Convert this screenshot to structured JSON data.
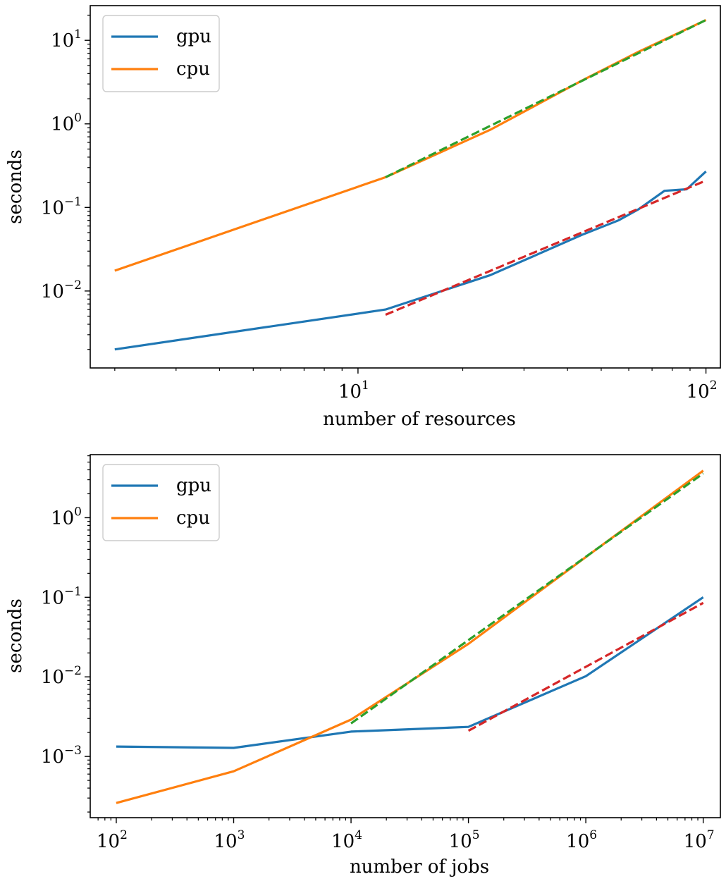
{
  "chart_data": [
    {
      "type": "line",
      "xscale": "log",
      "yscale": "log",
      "xlabel": "number of resources",
      "ylabel": "seconds",
      "xlim": [
        1.7,
        110
      ],
      "ylim": [
        0.0012,
        26
      ],
      "xticks": [
        {
          "value": 10,
          "base": "10",
          "exp": "1"
        },
        {
          "value": 100,
          "base": "10",
          "exp": "2"
        }
      ],
      "yticks": [
        {
          "value": 0.01,
          "base": "10",
          "exp": "−2"
        },
        {
          "value": 0.1,
          "base": "10",
          "exp": "−1"
        },
        {
          "value": 1,
          "base": "10",
          "exp": "0"
        },
        {
          "value": 10,
          "base": "10",
          "exp": "1"
        }
      ],
      "legend": {
        "location": "upper-left",
        "entries": [
          "gpu",
          "cpu"
        ]
      },
      "series": [
        {
          "name": "gpu",
          "color": "#1f77b4",
          "style": "solid",
          "x": [
            2,
            12,
            24,
            44,
            56,
            64,
            76,
            88,
            100
          ],
          "y": [
            0.002,
            0.006,
            0.0155,
            0.047,
            0.07,
            0.095,
            0.158,
            0.165,
            0.27
          ]
        },
        {
          "name": "cpu",
          "color": "#ff7f0e",
          "style": "solid",
          "x": [
            2,
            12,
            24,
            44,
            64,
            100
          ],
          "y": [
            0.0175,
            0.23,
            0.85,
            3.3,
            7.3,
            17.5
          ]
        },
        {
          "color": "#2ca02c",
          "style": "dashed",
          "x": [
            12,
            100
          ],
          "y": [
            0.23,
            17.5
          ]
        },
        {
          "color": "#d62728",
          "style": "dashed",
          "x": [
            12,
            100
          ],
          "y": [
            0.0052,
            0.21
          ]
        }
      ]
    },
    {
      "type": "line",
      "xscale": "log",
      "yscale": "log",
      "xlabel": "number of jobs",
      "ylabel": "seconds",
      "xlim": [
        60,
        14000000
      ],
      "ylim": [
        0.00017,
        6.2
      ],
      "xticks": [
        {
          "value": 100,
          "base": "10",
          "exp": "2"
        },
        {
          "value": 1000,
          "base": "10",
          "exp": "3"
        },
        {
          "value": 10000,
          "base": "10",
          "exp": "4"
        },
        {
          "value": 100000,
          "base": "10",
          "exp": "5"
        },
        {
          "value": 1000000,
          "base": "10",
          "exp": "6"
        },
        {
          "value": 10000000,
          "base": "10",
          "exp": "7"
        }
      ],
      "yticks": [
        {
          "value": 0.001,
          "base": "10",
          "exp": "−3"
        },
        {
          "value": 0.01,
          "base": "10",
          "exp": "−2"
        },
        {
          "value": 0.1,
          "base": "10",
          "exp": "−1"
        },
        {
          "value": 1,
          "base": "10",
          "exp": "0"
        }
      ],
      "legend": {
        "location": "upper-left",
        "entries": [
          "gpu",
          "cpu"
        ]
      },
      "series": [
        {
          "name": "gpu",
          "color": "#1f77b4",
          "style": "solid",
          "x": [
            100,
            1000,
            10000,
            100000,
            1000000,
            10000000
          ],
          "y": [
            0.00133,
            0.00128,
            0.00205,
            0.00235,
            0.0102,
            0.1
          ]
        },
        {
          "name": "cpu",
          "color": "#ff7f0e",
          "style": "solid",
          "x": [
            100,
            1000,
            10000,
            100000,
            1000000,
            10000000
          ],
          "y": [
            0.00026,
            0.00065,
            0.0029,
            0.026,
            0.32,
            3.9
          ]
        },
        {
          "color": "#2ca02c",
          "style": "dashed",
          "x": [
            10000,
            10000000
          ],
          "y": [
            0.0026,
            3.6
          ]
        },
        {
          "color": "#d62728",
          "style": "dashed",
          "x": [
            100000,
            10000000
          ],
          "y": [
            0.0021,
            0.085
          ]
        }
      ]
    }
  ]
}
